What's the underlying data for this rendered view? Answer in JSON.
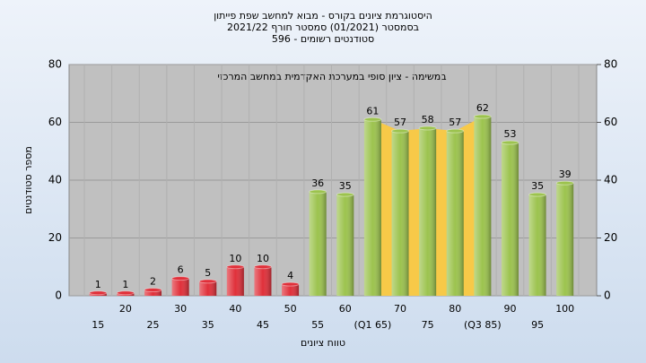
{
  "chart_data": {
    "type": "bar",
    "title": [
      "היסטוגרמת ציונים בקורס - מבוא למחשב שפת פייתון",
      "בסמסטר  (01/2021)  סמסטר חורף 2021/22",
      "סטודנטים רשומים - 596"
    ],
    "annotation": "במשימה - ציון סופי במערכת האקדמית במחשב המרכזי",
    "x_label": "טווח ציונים",
    "y_label": "מספר סטודנטים",
    "categories": [
      "15",
      "20",
      "25",
      "30",
      "35",
      "40",
      "45",
      "50",
      "55",
      "60",
      "(Q1 65)",
      "70",
      "75",
      "80",
      "(Q3 85)",
      "90",
      "95",
      "100"
    ],
    "values": [
      1,
      1,
      2,
      6,
      5,
      10,
      10,
      4,
      36,
      35,
      61,
      57,
      58,
      57,
      62,
      53,
      35,
      39
    ],
    "colors": [
      "#e0303a",
      "#e0303a",
      "#e0303a",
      "#e0303a",
      "#e0303a",
      "#e0303a",
      "#e0303a",
      "#e0303a",
      "#9cc34e",
      "#9cc34e",
      "#9cc34e",
      "#9cc34e",
      "#9cc34e",
      "#9cc34e",
      "#9cc34e",
      "#9cc34e",
      "#9cc34e",
      "#9cc34e"
    ],
    "highlight_color": "#f7c948",
    "ylim": [
      0,
      80
    ],
    "yticks": [
      0,
      20,
      40,
      60,
      80
    ],
    "y2lim": [
      0,
      80
    ],
    "y2ticks": [
      0,
      20,
      40,
      60,
      80
    ],
    "grid": true
  }
}
